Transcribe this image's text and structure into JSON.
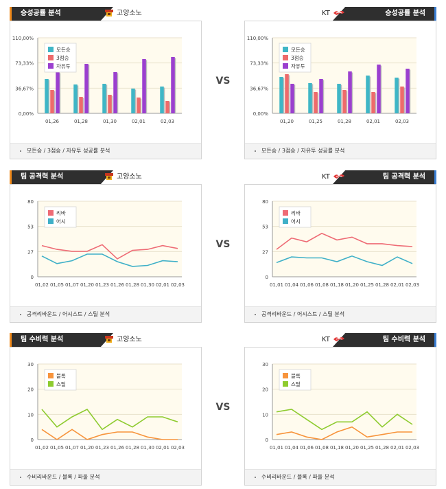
{
  "vs_label": "VS",
  "colors": {
    "header_dark": "#2f2f2f",
    "accent_left": "#f08a1c",
    "accent_right": "#3a7fd5"
  },
  "sections": [
    {
      "title": "승성공률 분석",
      "footer": "모든승 / 3점승 / 자유투 성공률 분석",
      "left_team": "고양소노",
      "right_team": "KT",
      "left_logo": "sono-logo-icon",
      "right_logo": "kt-logo-icon",
      "chart_data": [
        {
          "type": "bar",
          "team": "고양소노",
          "categories": [
            "01,26",
            "01,28",
            "01,30",
            "02,01",
            "02,03"
          ],
          "ylim": [
            0,
            110
          ],
          "yticks": [
            "110,00%",
            "73,33%",
            "36,67%",
            "0,00%"
          ],
          "series": [
            {
              "name": "모든승",
              "color": "#3fb6c6",
              "values": [
                50,
                42,
                43,
                36,
                39
              ]
            },
            {
              "name": "3점승",
              "color": "#ee6b6b",
              "values": [
                34,
                24,
                27,
                23,
                18
              ]
            },
            {
              "name": "자유투",
              "color": "#9b3fcf",
              "values": [
                60,
                72,
                60,
                79,
                82
              ]
            }
          ]
        },
        {
          "type": "bar",
          "team": "KT",
          "categories": [
            "01,20",
            "01,25",
            "01,28",
            "02,01",
            "02,03"
          ],
          "ylim": [
            0,
            110
          ],
          "yticks": [
            "110,00%",
            "73,33%",
            "36,67%",
            "0,00%"
          ],
          "series": [
            {
              "name": "모든승",
              "color": "#3fb6c6",
              "values": [
                53,
                44,
                43,
                55,
                52
              ]
            },
            {
              "name": "3점승",
              "color": "#ee6b6b",
              "values": [
                57,
                31,
                34,
                31,
                39
              ]
            },
            {
              "name": "자유투",
              "color": "#9b3fcf",
              "values": [
                43,
                50,
                61,
                71,
                65
              ]
            }
          ]
        }
      ]
    },
    {
      "title": "팀 공격력 분석",
      "footer": "공격리바운드 / 어시스트 / 스틸 분석",
      "left_team": "고양소노",
      "right_team": "KT",
      "left_logo": "sono-logo-icon",
      "right_logo": "kt-logo-icon",
      "chart_data": [
        {
          "type": "line",
          "team": "고양소노",
          "categories": [
            "01,02",
            "01,05",
            "01,07",
            "01,20",
            "01,23",
            "01,26",
            "01,28",
            "01,30",
            "02,01",
            "02,03"
          ],
          "ylim": [
            0,
            80
          ],
          "yticks": [
            "80",
            "53",
            "27",
            "0"
          ],
          "series": [
            {
              "name": "리바",
              "color": "#ee6b75",
              "values": [
                33,
                29,
                27,
                27,
                34,
                19,
                28,
                29,
                33,
                30
              ]
            },
            {
              "name": "어시",
              "color": "#3fb0c8",
              "values": [
                22,
                14,
                17,
                24,
                24,
                16,
                11,
                12,
                17,
                16
              ]
            }
          ]
        },
        {
          "type": "line",
          "team": "KT",
          "categories": [
            "01,01",
            "01,04",
            "01,06",
            "01,08",
            "01,18",
            "01,20",
            "01,25",
            "01,28",
            "02,01",
            "02,03"
          ],
          "ylim": [
            0,
            80
          ],
          "yticks": [
            "80",
            "53",
            "27",
            "0"
          ],
          "series": [
            {
              "name": "리바",
              "color": "#ee6b75",
              "values": [
                29,
                41,
                37,
                46,
                39,
                42,
                35,
                35,
                33,
                32
              ]
            },
            {
              "name": "어시",
              "color": "#3fb0c8",
              "values": [
                15,
                21,
                20,
                20,
                16,
                22,
                16,
                12,
                21,
                14
              ]
            }
          ]
        }
      ]
    },
    {
      "title": "팀 수비력 분석",
      "footer": "수비리바운드 / 블록 / 파울 분석",
      "left_team": "고양소노",
      "right_team": "KT",
      "left_logo": "sono-logo-icon",
      "right_logo": "kt-logo-icon",
      "chart_data": [
        {
          "type": "line",
          "team": "고양소노",
          "categories": [
            "01,02",
            "01,05",
            "01,07",
            "01,20",
            "01,23",
            "01,26",
            "01,28",
            "01,30",
            "02,01",
            "02,03"
          ],
          "ylim": [
            0,
            30
          ],
          "yticks": [
            "30",
            "20",
            "10",
            "0"
          ],
          "series": [
            {
              "name": "블록",
              "color": "#f7943c",
              "values": [
                4,
                0,
                4,
                0,
                2,
                3,
                3,
                1,
                0,
                0
              ]
            },
            {
              "name": "스틸",
              "color": "#8ecb2f",
              "values": [
                12,
                5,
                9,
                12,
                4,
                8,
                5,
                9,
                9,
                7
              ]
            }
          ]
        },
        {
          "type": "line",
          "team": "KT",
          "categories": [
            "01,01",
            "01,04",
            "01,06",
            "01,08",
            "01,18",
            "01,20",
            "01,25",
            "01,28",
            "02,01",
            "02,03"
          ],
          "ylim": [
            0,
            30
          ],
          "yticks": [
            "30",
            "20",
            "10",
            "0"
          ],
          "series": [
            {
              "name": "블록",
              "color": "#f7943c",
              "values": [
                2,
                3,
                1,
                0,
                3,
                5,
                1,
                2,
                3,
                3
              ]
            },
            {
              "name": "스틸",
              "color": "#8ecb2f",
              "values": [
                11,
                12,
                8,
                4,
                7,
                7,
                11,
                5,
                10,
                6
              ]
            }
          ]
        }
      ]
    }
  ]
}
